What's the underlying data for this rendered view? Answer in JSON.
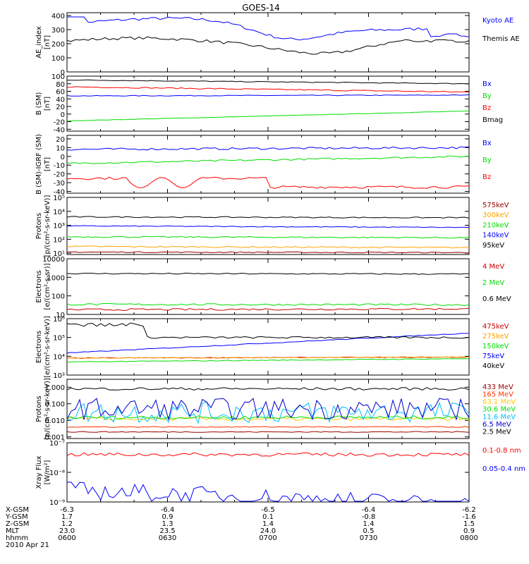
{
  "title": "GOES-14",
  "date_label": "2010 Apr 21",
  "colors": {
    "black": "#000000",
    "blue": "#0000ff",
    "red": "#ff0000",
    "green": "#00ff00",
    "orange": "#ffa500",
    "cyan": "#00bfff",
    "purple": "#9900cc",
    "darkblue": "#0033cc",
    "darkred": "#cc0000",
    "brown": "#990000",
    "yellow": "#ffff00"
  },
  "chart_data": [
    {
      "type": "line",
      "ylabel": [
        "AE_index",
        "[nT]"
      ],
      "ylim": [
        0,
        420
      ],
      "log": false,
      "ticks": [
        0,
        100,
        200,
        300,
        400
      ],
      "tick_labels": [
        "0",
        "100",
        "200",
        "300",
        "400"
      ],
      "series": [
        {
          "name": "Kyoto AE",
          "color": "#0000ff",
          "kind": "ae_kyoto"
        },
        {
          "name": "Themis AE",
          "color": "#000000",
          "kind": "ae_themis"
        }
      ]
    },
    {
      "type": "line",
      "ylabel": [
        "B (SM)",
        "[nT]"
      ],
      "ylim": [
        -45,
        100
      ],
      "log": false,
      "ticks": [
        -40,
        -20,
        0,
        20,
        40,
        60,
        80,
        100
      ],
      "tick_labels": [
        "-40",
        "-20",
        "0",
        "20",
        "40",
        "60",
        "80",
        "100"
      ],
      "series": [
        {
          "name": "Bx",
          "color": "#0000ff",
          "kind": "level",
          "start": 48,
          "end": 50,
          "noise": 1
        },
        {
          "name": "By",
          "color": "#00dd00",
          "kind": "level",
          "start": -18,
          "end": 8,
          "noise": 0.5
        },
        {
          "name": "Bz",
          "color": "#ff0000",
          "kind": "level",
          "start": 72,
          "end": 58,
          "noise": 1.5
        },
        {
          "name": "Bmag",
          "color": "#000000",
          "kind": "level",
          "start": 90,
          "end": 80,
          "noise": 1
        }
      ]
    },
    {
      "type": "line",
      "ylabel": [
        "B (SM)-IGRF (SM)",
        "[nT]"
      ],
      "ylim": [
        -42,
        24
      ],
      "log": false,
      "ticks": [
        -40,
        -30,
        -20,
        -10,
        0,
        10,
        20
      ],
      "tick_labels": [
        "-40",
        "-30",
        "-20",
        "-10",
        "0",
        "10",
        "20"
      ],
      "series": [
        {
          "name": "Bx",
          "color": "#0000ff",
          "kind": "level",
          "start": 8,
          "end": 10,
          "noise": 1.2
        },
        {
          "name": "By",
          "color": "#00dd00",
          "kind": "level",
          "start": -8,
          "end": 0,
          "noise": 1
        },
        {
          "name": "Bz",
          "color": "#ff0000",
          "kind": "bz_igrf"
        }
      ]
    },
    {
      "type": "line",
      "ylabel": [
        "Protons",
        "[p/(cm²-s-sr-keV)]"
      ],
      "ylim": [
        8,
        100000
      ],
      "log": true,
      "ticks": [
        10,
        100,
        1000,
        10000,
        100000
      ],
      "tick_labels": [
        "10¹",
        "10²",
        "10³",
        "10⁴",
        "10⁵"
      ],
      "series": [
        {
          "name": "575keV",
          "color": "#990000",
          "kind": "loglevel",
          "start": 12,
          "end": 11,
          "noise": 0.04
        },
        {
          "name": "300keV",
          "color": "#ffa500",
          "kind": "loglevel",
          "start": 30,
          "end": 25,
          "noise": 0.05
        },
        {
          "name": "210keV",
          "color": "#00dd00",
          "kind": "loglevel",
          "start": 150,
          "end": 130,
          "noise": 0.05
        },
        {
          "name": "140keV",
          "color": "#0000ff",
          "kind": "loglevel",
          "start": 900,
          "end": 700,
          "noise": 0.03
        },
        {
          "name": "95keV",
          "color": "#000000",
          "kind": "loglevel",
          "start": 4000,
          "end": 3500,
          "noise": 0.04
        }
      ]
    },
    {
      "type": "line",
      "ylabel": [
        "Electrons",
        "[e/(cm²-s-sr)]"
      ],
      "ylim": [
        10,
        10000
      ],
      "log": true,
      "ticks": [
        10,
        100,
        1000,
        10000
      ],
      "tick_labels": [
        "10",
        "100",
        "1000",
        "10000"
      ],
      "series": [
        {
          "name": "4 MeV",
          "color": "#cc0000",
          "kind": "loglevel",
          "start": 18,
          "end": 20,
          "noise": 0.05
        },
        {
          "name": "2 MeV",
          "color": "#00dd00",
          "kind": "loglevel",
          "start": 35,
          "end": 33,
          "noise": 0.05
        },
        {
          "name": "0.6 MeV",
          "color": "#000000",
          "kind": "loglevel",
          "start": 1600,
          "end": 1500,
          "noise": 0.03
        }
      ]
    },
    {
      "type": "line",
      "ylabel": [
        "Electrons",
        "[e/(cm²-s-sr-keV)]"
      ],
      "ylim": [
        1000,
        1000000
      ],
      "log": true,
      "ticks": [
        1000,
        10000,
        100000,
        1000000
      ],
      "tick_labels": [
        "10³",
        "10⁴",
        "10⁵",
        "10⁶"
      ],
      "series": [
        {
          "name": "475keV",
          "color": "#cc0000",
          "kind": "loglevel",
          "start": 8000,
          "end": 9000,
          "noise": 0.02
        },
        {
          "name": "275keV",
          "color": "#ffa500",
          "kind": "loglevel",
          "start": 8000,
          "end": 9000,
          "noise": 0.02
        },
        {
          "name": "150keV",
          "color": "#00dd00",
          "kind": "loglevel",
          "start": 5000,
          "end": 7500,
          "noise": 0.02
        },
        {
          "name": "75keV",
          "color": "#0000ff",
          "kind": "loglevel",
          "start": 15000,
          "end": 170000,
          "noise": 0.02
        },
        {
          "name": "40keV",
          "color": "#000000",
          "kind": "e40"
        }
      ]
    },
    {
      "type": "line",
      "ylabel": [
        "Protons",
        "[p/(cm²-s-sr-keV)]"
      ],
      "ylim": [
        0.0008,
        3
      ],
      "log": true,
      "ticks": [
        0.001,
        0.01,
        0.1,
        1
      ],
      "tick_labels": [
        "0.001",
        "0.010",
        "0.100",
        "1.000"
      ],
      "series": [
        {
          "name": "433 MeV",
          "color": "#990000",
          "kind": "loglevel",
          "start": 0.002,
          "end": 0.002,
          "noise": 0.03
        },
        {
          "name": "165 MeV",
          "color": "#ff3300",
          "kind": "loglevel",
          "start": 0.004,
          "end": 0.004,
          "noise": 0.03
        },
        {
          "name": "63.1 MeV",
          "color": "#ffcc00",
          "kind": "loglevel",
          "start": 0.012,
          "end": 0.012,
          "noise": 0.1
        },
        {
          "name": "30.6 MeV",
          "color": "#00dd00",
          "kind": "loglevel",
          "start": 0.015,
          "end": 0.015,
          "noise": 0.1
        },
        {
          "name": "11.6 MeV",
          "color": "#00bfff",
          "kind": "spiky",
          "base": 0.03
        },
        {
          "name": "6.5 MeV",
          "color": "#0000cc",
          "kind": "spiky",
          "base": 0.05
        },
        {
          "name": "2.5 MeV",
          "color": "#000000",
          "kind": "loglevel",
          "start": 0.8,
          "end": 0.8,
          "noise": 0.08
        }
      ]
    },
    {
      "type": "line",
      "ylabel": [
        "Xray Flux",
        "[W/m²]"
      ],
      "ylim": [
        1e-09,
        1e-07
      ],
      "log": true,
      "ticks": [
        1e-09,
        1e-08,
        1e-07
      ],
      "tick_labels": [
        "10⁻⁹",
        "10⁻⁸",
        "10⁻⁷"
      ],
      "series": [
        {
          "name": "0.1-0.8 nm",
          "color": "#ff0000",
          "kind": "loglevel",
          "start": 4e-08,
          "end": 4e-08,
          "noise": 0.06
        },
        {
          "name": "0.05-0.4 nm",
          "color": "#0000ff",
          "kind": "xray_short"
        }
      ]
    }
  ],
  "x_axis": {
    "rows": [
      {
        "label": "X-GSM",
        "values": [
          "-6.3",
          "-6.4",
          "-6.5",
          "-6.4",
          "-6.2"
        ]
      },
      {
        "label": "Y-GSM",
        "values": [
          "1.7",
          "0.9",
          "0.1",
          "-0.8",
          "-1.6"
        ]
      },
      {
        "label": "Z-GSM",
        "values": [
          "1.2",
          "1.3",
          "1.4",
          "1.4",
          "1.5"
        ]
      },
      {
        "label": "MLT",
        "values": [
          "23.0",
          "23.5",
          "24.0",
          "0.5",
          "0.9"
        ]
      },
      {
        "label": "hhmm",
        "values": [
          "0600",
          "0630",
          "0700",
          "0730",
          "0800"
        ]
      }
    ]
  }
}
